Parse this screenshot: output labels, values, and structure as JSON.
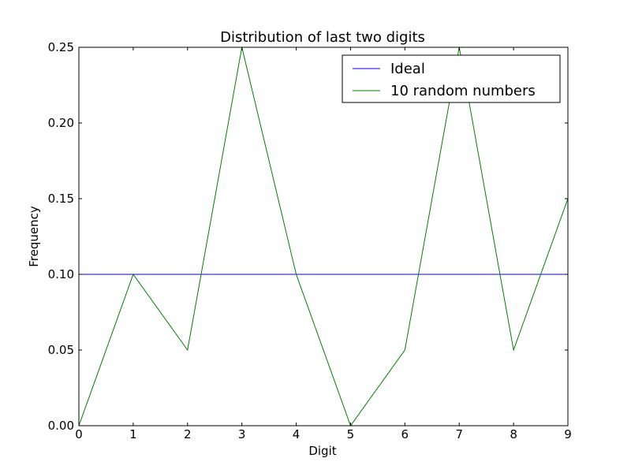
{
  "chart_data": {
    "type": "line",
    "title": "Distribution of last two digits",
    "xlabel": "Digit",
    "ylabel": "Frequency",
    "xlim": [
      0,
      9
    ],
    "ylim": [
      0,
      0.25
    ],
    "x": [
      0,
      1,
      2,
      3,
      4,
      5,
      6,
      7,
      8,
      9
    ],
    "xticks": [
      "0",
      "1",
      "2",
      "3",
      "4",
      "5",
      "6",
      "7",
      "8",
      "9"
    ],
    "yticks": [
      "0.00",
      "0.05",
      "0.10",
      "0.15",
      "0.20",
      "0.25"
    ],
    "ytick_values": [
      0,
      0.05,
      0.1,
      0.15,
      0.2,
      0.25
    ],
    "grid": false,
    "legend_position": "top-right",
    "series": [
      {
        "name": "Ideal",
        "color": "#0000ff",
        "values": [
          0.1,
          0.1,
          0.1,
          0.1,
          0.1,
          0.1,
          0.1,
          0.1,
          0.1,
          0.1
        ]
      },
      {
        "name": "10 random numbers",
        "color": "#008000",
        "values": [
          0.0,
          0.1,
          0.05,
          0.25,
          0.1,
          0.0,
          0.05,
          0.25,
          0.05,
          0.15
        ]
      }
    ]
  }
}
